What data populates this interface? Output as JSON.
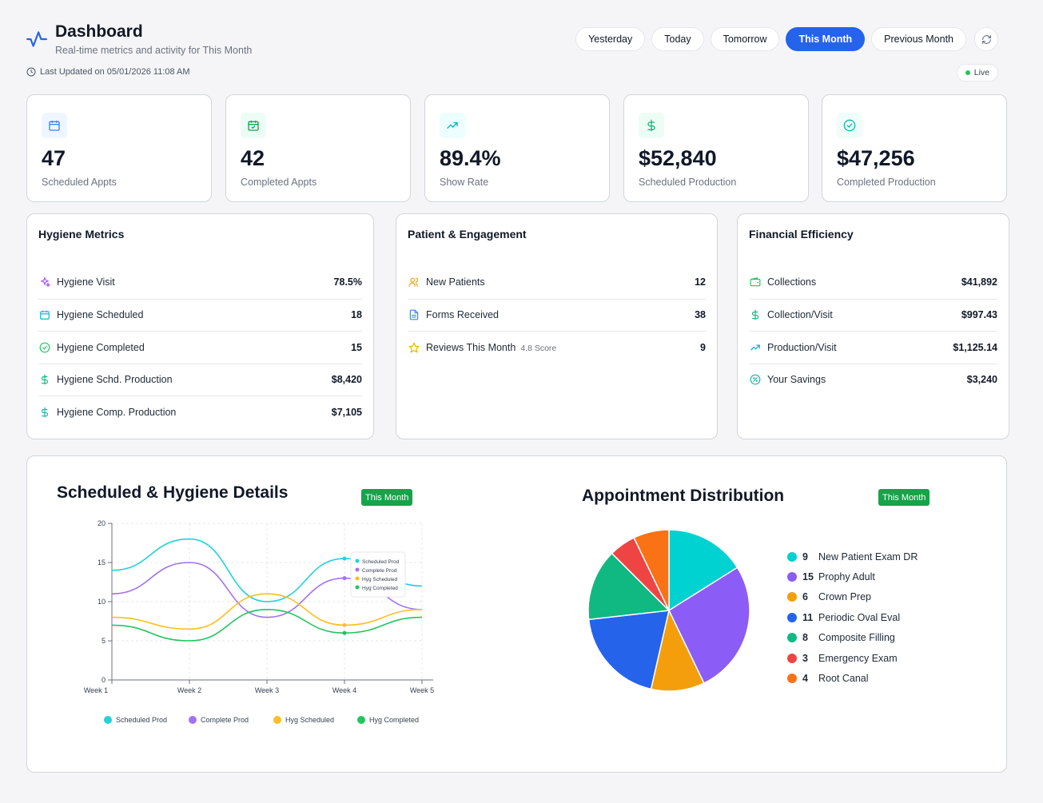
{
  "header": {
    "title": "Dashboard",
    "subtitle": "Real-time metrics and activity for This Month",
    "last_updated": "Last Updated on 05/01/2026 11:08 AM",
    "live": "Live",
    "ranges": [
      "Yesterday",
      "Today",
      "Tomorrow",
      "This Month",
      "Previous Month"
    ],
    "active_range": "This Month"
  },
  "kpis": [
    {
      "value": "47",
      "label": "Scheduled Appts",
      "icon": "calendar-icon",
      "color": "#3b82f6"
    },
    {
      "value": "42",
      "label": "Completed Appts",
      "icon": "calendar-check-icon",
      "color": "#16a34a"
    },
    {
      "value": "89.4%",
      "label": "Show Rate",
      "icon": "trending-up-icon",
      "color": "#06b6d4"
    },
    {
      "value": "$52,840",
      "label": "Scheduled Production",
      "icon": "dollar-icon",
      "color": "#10b981"
    },
    {
      "value": "$47,256",
      "label": "Completed Production",
      "icon": "check-circle-icon",
      "color": "#14b8a6"
    }
  ],
  "hygiene": {
    "title": "Hygiene Metrics",
    "rows": [
      {
        "label": "Hygiene Visit",
        "value": "78.5%",
        "icon": "sparkle-icon"
      },
      {
        "label": "Hygiene Scheduled",
        "value": "18",
        "icon": "calendar-icon"
      },
      {
        "label": "Hygiene Completed",
        "value": "15",
        "icon": "check-circle-icon"
      },
      {
        "label": "Hygiene Schd. Production",
        "value": "$8,420",
        "icon": "dollar-icon"
      },
      {
        "label": "Hygiene Comp. Production",
        "value": "$7,105",
        "icon": "dollar-icon"
      }
    ]
  },
  "patient": {
    "title": "Patient & Engagement",
    "rows": [
      {
        "label": "New Patients",
        "value": "12",
        "icon": "users-icon"
      },
      {
        "label": "Forms Received",
        "value": "38",
        "icon": "document-icon"
      },
      {
        "label": "Reviews This Month",
        "sub": "4.8 Score",
        "value": "9",
        "icon": "star-icon"
      }
    ]
  },
  "financial": {
    "title": "Financial Efficiency",
    "rows": [
      {
        "label": "Collections",
        "value": "$41,892",
        "icon": "wallet-icon"
      },
      {
        "label": "Collection/Visit",
        "value": "$997.43",
        "icon": "dollar-icon"
      },
      {
        "label": "Production/Visit",
        "value": "$1,125.14",
        "icon": "trending-up-icon"
      },
      {
        "label": "Your Savings",
        "value": "$3,240",
        "icon": "badge-percent-icon"
      }
    ]
  },
  "charts": {
    "line_title": "Scheduled & Hygiene Details",
    "pie_title": "Appointment Distribution",
    "badge": "This Month"
  },
  "chart_data": [
    {
      "type": "line",
      "title": "Scheduled & Hygiene Details",
      "x": [
        "Week 1",
        "Week 2",
        "Week 3",
        "Week 4",
        "Week 5"
      ],
      "ylim": [
        0,
        20
      ],
      "yticks": [
        0,
        5,
        10,
        15,
        20
      ],
      "grid": true,
      "legend": "bottom",
      "series": [
        {
          "name": "Scheduled Prod",
          "values": [
            14,
            18,
            10,
            15.5,
            12
          ],
          "color": "#22d3d8"
        },
        {
          "name": "Complete Prod",
          "values": [
            11,
            15,
            8,
            13,
            9
          ],
          "color": "#a371f7"
        },
        {
          "name": "Hyg Scheduled",
          "values": [
            8,
            6.5,
            11,
            7,
            9
          ],
          "color": "#fbbf24"
        },
        {
          "name": "Hyg Completed",
          "values": [
            7,
            5,
            9,
            6,
            8
          ],
          "color": "#22c55e"
        }
      ]
    },
    {
      "type": "pie",
      "title": "Appointment Distribution",
      "legend": "right",
      "slices": [
        {
          "label": "New Patient Exam DR",
          "value": 9,
          "color": "#00d1d1"
        },
        {
          "label": "Prophy Adult",
          "value": 15,
          "color": "#8b5cf6"
        },
        {
          "label": "Crown Prep",
          "value": 6,
          "color": "#f59e0b"
        },
        {
          "label": "Periodic Oval Eval",
          "value": 11,
          "color": "#2563eb"
        },
        {
          "label": "Composite Filling",
          "value": 8,
          "color": "#10b981"
        },
        {
          "label": "Emergency Exam",
          "value": 3,
          "color": "#ef4444"
        },
        {
          "label": "Root Canal",
          "value": 4,
          "color": "#f97316"
        }
      ]
    }
  ]
}
